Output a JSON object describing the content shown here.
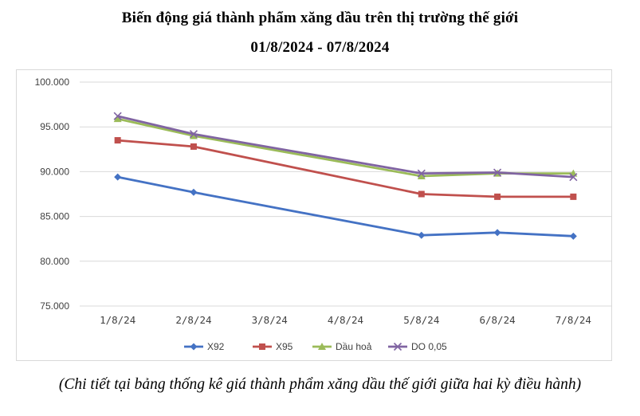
{
  "title_line1": "Biến động giá thành phẩm xăng dầu trên thị trường thế giới",
  "title_line2": "01/8/2024 - 07/8/2024",
  "caption": "(Chi tiết tại bảng thống kê giá thành phẩm xăng dầu thế giới giữa hai kỳ điều hành)",
  "chart_data": {
    "type": "line",
    "categories": [
      "1/8/24",
      "2/8/24",
      "3/8/24",
      "4/8/24",
      "5/8/24",
      "6/8/24",
      "7/8/24"
    ],
    "ylim": [
      75000,
      100000
    ],
    "yticks": [
      75000,
      80000,
      85000,
      90000,
      95000,
      100000
    ],
    "ytick_labels": [
      "75.000",
      "80.000",
      "85.000",
      "90.000",
      "95.000",
      "100.000"
    ],
    "grid": true,
    "legend_position": "bottom",
    "series": [
      {
        "name": "X92",
        "color": "#4472c4",
        "marker": "diamond",
        "values": [
          89400,
          87700,
          null,
          null,
          82900,
          83200,
          82800
        ]
      },
      {
        "name": "X95",
        "color": "#c0504d",
        "marker": "square",
        "values": [
          93500,
          92800,
          null,
          null,
          87500,
          87200,
          87200
        ]
      },
      {
        "name": "Dầu hoả",
        "color": "#9bbb59",
        "marker": "triangle",
        "values": [
          95900,
          94000,
          null,
          null,
          89500,
          89800,
          89800
        ]
      },
      {
        "name": "DO 0,05",
        "color": "#8064a2",
        "marker": "x",
        "values": [
          96200,
          94200,
          null,
          null,
          89800,
          89900,
          89400
        ]
      }
    ]
  }
}
